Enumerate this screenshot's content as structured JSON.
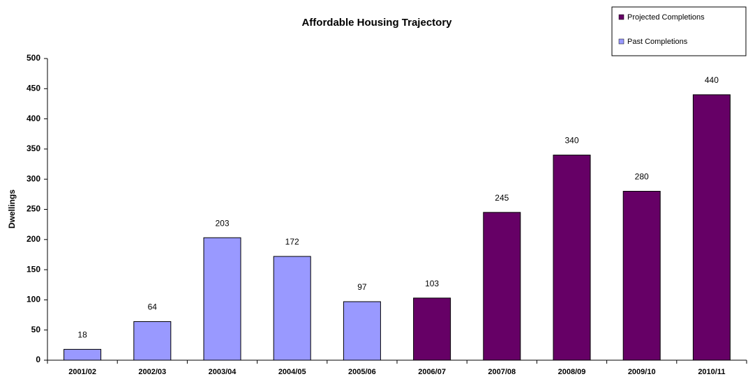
{
  "chart_data": {
    "type": "bar",
    "title": "Affordable Housing Trajectory",
    "y_label": "Dwellings",
    "categories": [
      "2001/02",
      "2002/03",
      "2003/04",
      "2004/05",
      "2005/06",
      "2006/07",
      "2007/08",
      "2008/09",
      "2009/10",
      "2010/11"
    ],
    "series": [
      {
        "name": "Projected Completions",
        "color": "#660066",
        "values": [
          null,
          null,
          null,
          null,
          null,
          103,
          245,
          340,
          280,
          440
        ]
      },
      {
        "name": "Past Completions",
        "color": "#9999ff",
        "values": [
          18,
          64,
          203,
          172,
          97,
          null,
          null,
          null,
          null,
          null
        ]
      }
    ],
    "ylim": [
      0,
      500
    ],
    "yticks": [
      0,
      50,
      100,
      150,
      200,
      250,
      300,
      350,
      400,
      450,
      500
    ],
    "legend": "top-right"
  }
}
